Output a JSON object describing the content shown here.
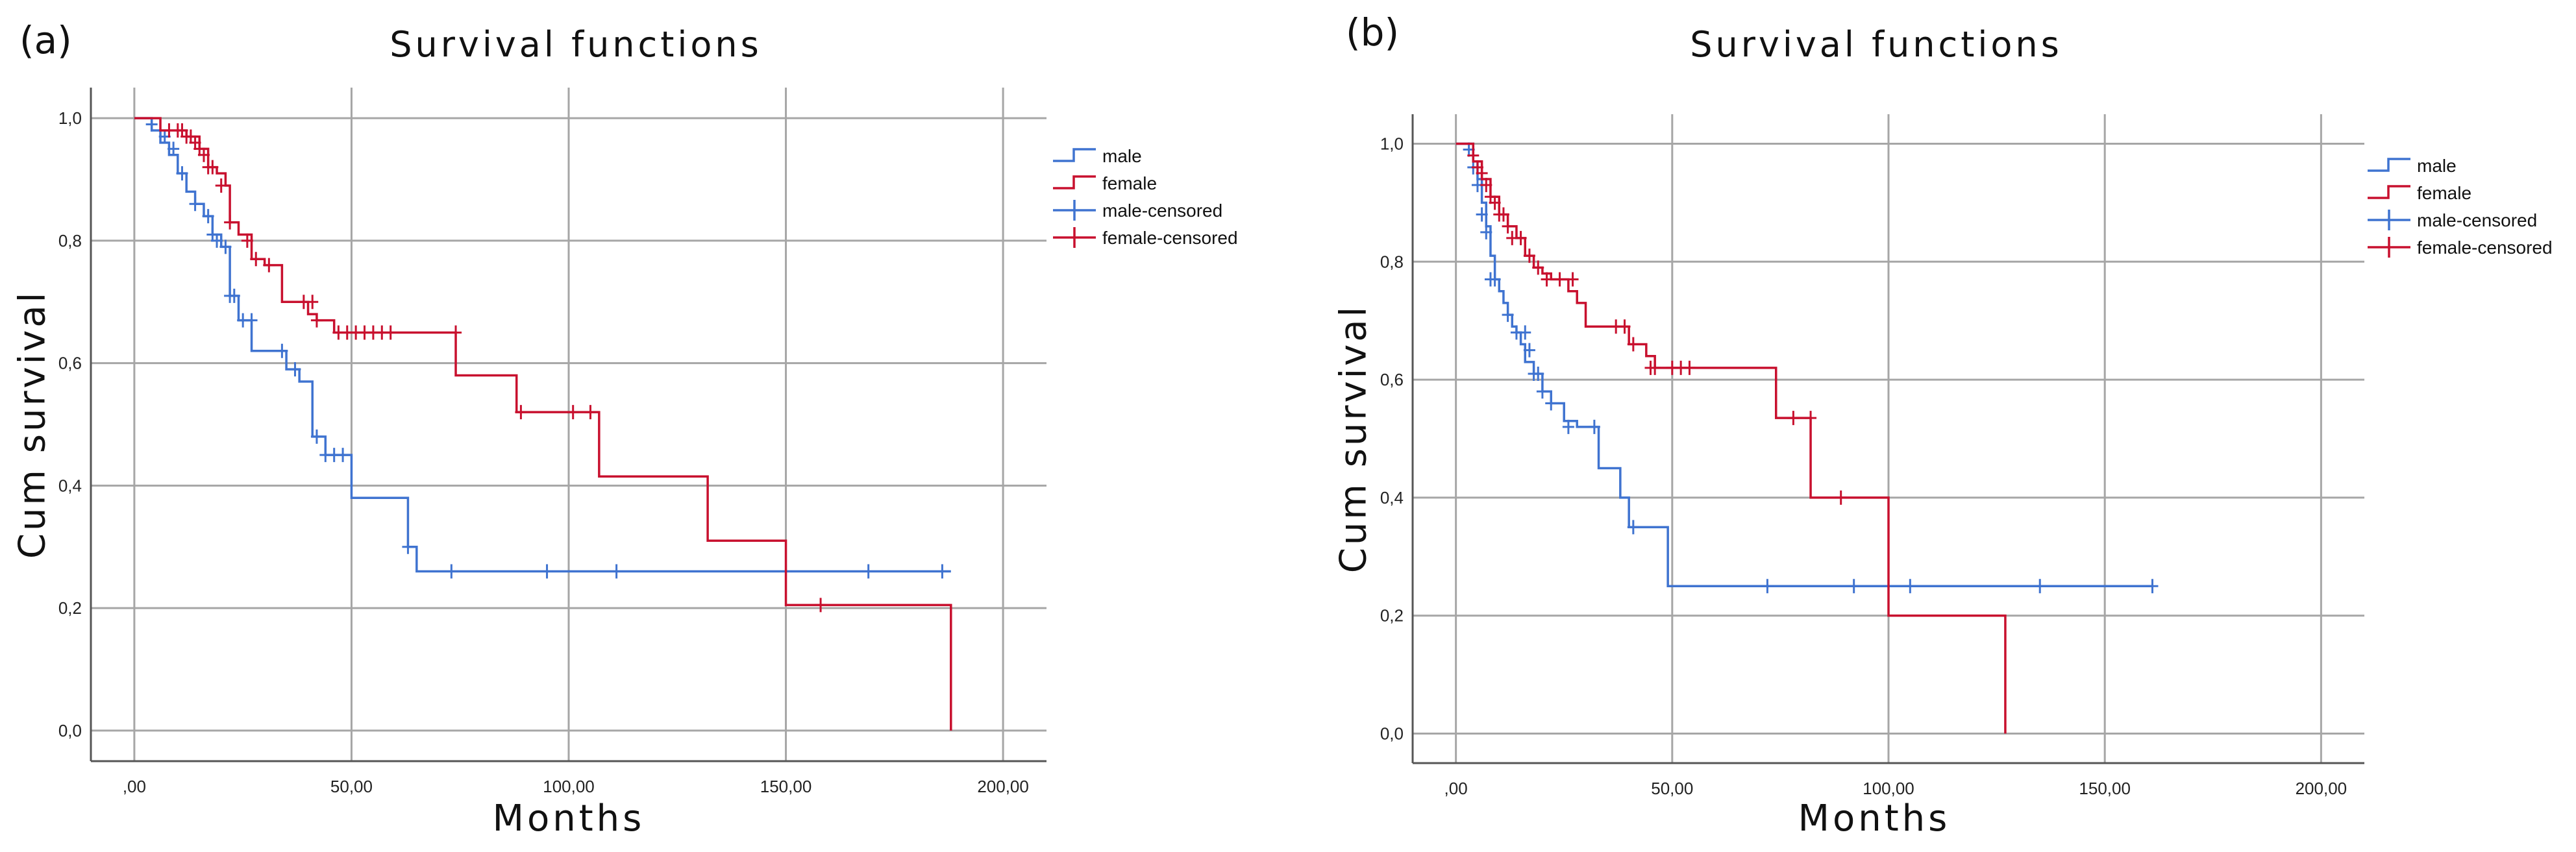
{
  "colors": {
    "male": "#3f73d0",
    "female": "#c8102e",
    "grid": "#a6a6a6",
    "axis": "#555555"
  },
  "chart_data": [
    {
      "panel_label": "(a)",
      "type": "line",
      "subtype": "kaplan-meier-step",
      "title": "Survival functions",
      "xlabel": "Months",
      "ylabel": "Cum survival",
      "xlim": [
        -10,
        210
      ],
      "ylim": [
        -0.05,
        1.05
      ],
      "x_ticks": [
        0,
        50,
        100,
        150,
        200
      ],
      "x_tick_labels": [
        ",00",
        "50,00",
        "100,00",
        "150,00",
        "200,00"
      ],
      "y_ticks": [
        0,
        0.2,
        0.4,
        0.6,
        0.8,
        1.0
      ],
      "y_tick_labels": [
        "0,0",
        "0,2",
        "0,4",
        "0,6",
        "0,8",
        "1,0"
      ],
      "grid": true,
      "legend_position": "right",
      "legend": [
        "male",
        "female",
        "male-censored",
        "female-censored"
      ],
      "series": [
        {
          "name": "male",
          "color_key": "male",
          "x": [
            0,
            4,
            6,
            8,
            10,
            12,
            14,
            16,
            18,
            20,
            22,
            24,
            27,
            30,
            35,
            38,
            41,
            44,
            50,
            63,
            65,
            188
          ],
          "y": [
            1.0,
            0.98,
            0.96,
            0.94,
            0.91,
            0.88,
            0.86,
            0.84,
            0.81,
            0.79,
            0.71,
            0.67,
            0.62,
            0.62,
            0.59,
            0.57,
            0.48,
            0.45,
            0.38,
            0.3,
            0.26,
            0.26
          ],
          "censored_x": [
            4,
            7,
            9,
            11,
            14,
            17,
            18,
            19,
            21,
            22,
            23,
            25,
            27,
            34,
            37,
            42,
            44,
            46,
            48,
            63,
            73,
            95,
            111,
            150,
            169,
            186
          ],
          "censored_y": [
            0.99,
            0.97,
            0.95,
            0.91,
            0.86,
            0.84,
            0.81,
            0.8,
            0.79,
            0.71,
            0.71,
            0.67,
            0.67,
            0.62,
            0.59,
            0.48,
            0.45,
            0.45,
            0.45,
            0.3,
            0.26,
            0.26,
            0.26,
            0.26,
            0.26,
            0.26
          ]
        },
        {
          "name": "female",
          "color_key": "female",
          "x": [
            0,
            6,
            12,
            15,
            17,
            19,
            21,
            22,
            24,
            27,
            30,
            34,
            40,
            42,
            46,
            74,
            88,
            107,
            132,
            150,
            188,
            188
          ],
          "y": [
            1.0,
            0.98,
            0.97,
            0.95,
            0.92,
            0.91,
            0.89,
            0.83,
            0.81,
            0.77,
            0.76,
            0.7,
            0.68,
            0.67,
            0.65,
            0.58,
            0.52,
            0.415,
            0.31,
            0.205,
            0.205,
            0.0
          ],
          "censored_x": [
            8,
            10,
            11,
            12,
            13,
            14,
            15,
            16,
            17,
            18,
            20,
            22,
            26,
            28,
            31,
            39,
            41,
            42,
            47,
            49,
            51,
            53,
            55,
            57,
            59,
            74,
            89,
            101,
            105,
            158
          ],
          "censored_y": [
            0.98,
            0.98,
            0.98,
            0.97,
            0.97,
            0.96,
            0.95,
            0.94,
            0.92,
            0.92,
            0.89,
            0.83,
            0.8,
            0.77,
            0.76,
            0.7,
            0.7,
            0.67,
            0.65,
            0.65,
            0.65,
            0.65,
            0.65,
            0.65,
            0.65,
            0.65,
            0.52,
            0.52,
            0.52,
            0.205
          ]
        }
      ]
    },
    {
      "panel_label": "(b)",
      "type": "line",
      "subtype": "kaplan-meier-step",
      "title": "Survival functions",
      "xlabel": "Months",
      "ylabel": "Cum survival",
      "xlim": [
        -10,
        210
      ],
      "ylim": [
        -0.05,
        1.05
      ],
      "x_ticks": [
        0,
        50,
        100,
        150,
        200
      ],
      "x_tick_labels": [
        ",00",
        "50,00",
        "100,00",
        "150,00",
        "200,00"
      ],
      "y_ticks": [
        0,
        0.2,
        0.4,
        0.6,
        0.8,
        1.0
      ],
      "y_tick_labels": [
        "0,0",
        "0,2",
        "0,4",
        "0,6",
        "0,8",
        "1,0"
      ],
      "grid": true,
      "legend_position": "right",
      "legend": [
        "male",
        "female",
        "male-censored",
        "female-censored"
      ],
      "series": [
        {
          "name": "male",
          "color_key": "male",
          "x": [
            0,
            4,
            5,
            6,
            7,
            8,
            9,
            10,
            11,
            12,
            13,
            14,
            15,
            16,
            18,
            20,
            22,
            25,
            28,
            33,
            38,
            40,
            49,
            161
          ],
          "y": [
            1.0,
            0.97,
            0.94,
            0.9,
            0.86,
            0.81,
            0.77,
            0.75,
            0.73,
            0.71,
            0.69,
            0.68,
            0.66,
            0.63,
            0.61,
            0.58,
            0.56,
            0.53,
            0.52,
            0.45,
            0.4,
            0.35,
            0.25,
            0.25
          ],
          "censored_x": [
            3,
            4,
            5,
            6,
            7,
            8,
            9,
            12,
            14,
            16,
            17,
            18,
            19,
            20,
            22,
            26,
            32,
            41,
            72,
            92,
            105,
            135,
            161
          ],
          "censored_y": [
            0.99,
            0.96,
            0.93,
            0.88,
            0.85,
            0.77,
            0.77,
            0.71,
            0.68,
            0.68,
            0.65,
            0.61,
            0.61,
            0.58,
            0.56,
            0.52,
            0.52,
            0.35,
            0.25,
            0.25,
            0.25,
            0.25,
            0.25
          ]
        },
        {
          "name": "female",
          "color_key": "female",
          "x": [
            0,
            4,
            6,
            8,
            10,
            12,
            14,
            16,
            18,
            20,
            22,
            26,
            28,
            30,
            36,
            40,
            44,
            46,
            74,
            82,
            100,
            127,
            127
          ],
          "y": [
            1.0,
            0.97,
            0.94,
            0.91,
            0.88,
            0.86,
            0.84,
            0.81,
            0.79,
            0.78,
            0.77,
            0.75,
            0.73,
            0.69,
            0.69,
            0.66,
            0.64,
            0.62,
            0.535,
            0.4,
            0.2,
            0.2,
            0.0
          ],
          "censored_x": [
            4,
            5,
            6,
            7,
            8,
            9,
            10,
            11,
            12,
            13,
            15,
            17,
            19,
            21,
            24,
            27,
            37,
            39,
            41,
            45,
            46,
            50,
            52,
            54,
            78,
            82,
            89
          ],
          "censored_y": [
            0.98,
            0.96,
            0.95,
            0.93,
            0.91,
            0.9,
            0.88,
            0.88,
            0.86,
            0.84,
            0.84,
            0.81,
            0.79,
            0.77,
            0.77,
            0.77,
            0.69,
            0.69,
            0.66,
            0.62,
            0.62,
            0.62,
            0.62,
            0.62,
            0.535,
            0.535,
            0.4
          ]
        }
      ]
    }
  ]
}
